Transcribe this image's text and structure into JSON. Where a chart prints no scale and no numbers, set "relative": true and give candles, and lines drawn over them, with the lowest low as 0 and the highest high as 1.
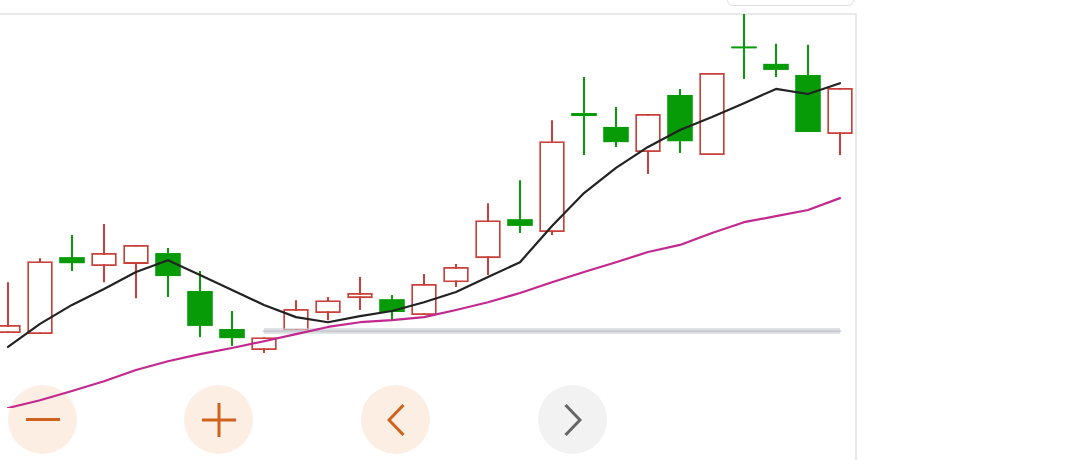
{
  "chart_data": {
    "type": "candlestick",
    "relative": true,
    "categories": [
      null,
      null,
      null,
      null,
      null,
      null,
      null,
      null,
      null,
      null,
      null,
      null,
      null,
      null,
      null,
      null,
      null,
      null,
      null,
      null,
      null,
      null,
      null,
      null,
      null,
      null,
      null
    ],
    "ohlc": [
      [
        0.059,
        0.209,
        0.059,
        0.083
      ],
      [
        0.056,
        0.28,
        0.056,
        0.271
      ],
      [
        0.283,
        0.348,
        0.242,
        0.265
      ],
      [
        0.257,
        0.381,
        0.209,
        0.295
      ],
      [
        0.263,
        0.319,
        0.162,
        0.319
      ],
      [
        0.295,
        0.31,
        0.165,
        0.227
      ],
      [
        0.183,
        0.242,
        0.047,
        0.08
      ],
      [
        0.071,
        0.124,
        0.021,
        0.044
      ],
      [
        0.009,
        0.047,
        0,
        0.047
      ],
      [
        0.065,
        0.156,
        0.065,
        0.13
      ],
      [
        0.118,
        0.165,
        0.097,
        0.156
      ],
      [
        0.162,
        0.224,
        0.127,
        0.177
      ],
      [
        0.159,
        0.171,
        0.097,
        0.121
      ],
      [
        0.112,
        0.233,
        0.112,
        0.204
      ],
      [
        0.209,
        0.263,
        0.195,
        0.254
      ],
      [
        0.28,
        0.442,
        0.23,
        0.392
      ],
      [
        0.395,
        0.51,
        0.354,
        0.375
      ],
      [
        0.357,
        0.687,
        0.348,
        0.625
      ],
      [
        0.708,
        0.814,
        0.584,
        0.699
      ],
      [
        0.667,
        0.726,
        0.608,
        0.622
      ],
      [
        0.593,
        0.705,
        0.528,
        0.705
      ],
      [
        0.761,
        0.779,
        0.59,
        0.625
      ],
      [
        0.584,
        0.826,
        0.584,
        0.826
      ],
      [
        0.903,
        1,
        0.808,
        0.9
      ],
      [
        0.853,
        0.912,
        0.814,
        0.835
      ],
      [
        0.82,
        0.909,
        0.652,
        0.652
      ],
      [
        0.646,
        0.782,
        0.584,
        0.782
      ]
    ],
    "colors": [
      "#c7403a",
      "#c7403a",
      "#089b08",
      "#c7403a",
      "#c7403a",
      "#089b08",
      "#089b08",
      "#089b08",
      "#c7403a",
      "#c7403a",
      "#c7403a",
      "#c7403a",
      "#089b08",
      "#c7403a",
      "#c7403a",
      "#c7403a",
      "#089b08",
      "#c7403a",
      "#089b08",
      "#089b08",
      "#c7403a",
      "#089b08",
      "#c7403a",
      "#089b08",
      "#089b08",
      "#089b08",
      "#c7403a"
    ],
    "series": [
      {
        "type": "line",
        "color": "#222222",
        "values": [
          0.018,
          0.086,
          0.142,
          0.189,
          0.239,
          0.274,
          0.23,
          0.186,
          0.142,
          0.106,
          0.091,
          0.109,
          0.124,
          0.15,
          0.18,
          0.224,
          0.268,
          0.375,
          0.472,
          0.546,
          0.608,
          0.658,
          0.696,
          0.737,
          0.779,
          0.764,
          0.796
        ]
      },
      {
        "type": "line",
        "color": "#c2288e",
        "values": [
          -0.162,
          -0.139,
          -0.112,
          -0.083,
          -0.05,
          -0.024,
          -0.003,
          0.015,
          0.035,
          0.056,
          0.077,
          0.091,
          0.097,
          0.106,
          0.127,
          0.15,
          0.177,
          0.209,
          0.239,
          0.268,
          0.298,
          0.319,
          0.354,
          0.386,
          0.404,
          0.422,
          0.457
        ]
      },
      {
        "type": "line",
        "color": "#c9cdd3",
        "values": [
          null,
          null,
          null,
          null,
          null,
          null,
          null,
          null,
          0.065,
          0.065,
          0.065,
          0.065,
          0.065,
          0.065,
          0.065,
          0.065,
          0.065,
          0.065,
          0.065,
          0.065,
          0.065,
          0.065,
          0.065,
          0.065,
          0.065,
          0.065,
          0.065
        ],
        "lower": [
          null,
          null,
          null,
          null,
          null,
          null,
          null,
          null,
          0.056,
          0.056,
          0.056,
          0.056,
          0.056,
          0.056,
          0.056,
          0.056,
          0.056,
          0.056,
          0.056,
          0.056,
          0.056,
          0.056,
          0.056,
          0.056,
          0.056,
          0.056,
          0.056
        ],
        "upper": [
          null,
          null,
          null,
          null,
          null,
          null,
          null,
          null,
          0.074,
          0.074,
          0.074,
          0.074,
          0.074,
          0.074,
          0.074,
          0.074,
          0.074,
          0.074,
          0.074,
          0.074,
          0.074,
          0.074,
          0.074,
          0.074,
          0.074,
          0.074,
          0.074
        ]
      }
    ],
    "tick_labels": false,
    "marker": "none"
  }
}
